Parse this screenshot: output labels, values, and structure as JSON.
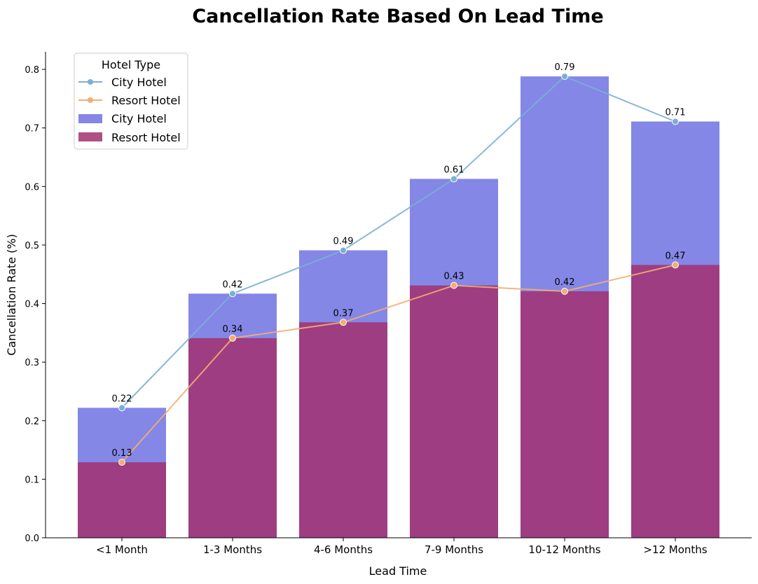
{
  "chart_data": {
    "type": "bar",
    "title": "Cancellation Rate Based On Lead Time",
    "xlabel": "Lead Time",
    "ylabel": "Cancellation Rate (%)",
    "categories": [
      "<1 Month",
      "1-3 Months",
      "4-6 Months",
      "7-9 Months",
      "10-12 Months",
      ">12 Months"
    ],
    "ylim": [
      0,
      0.83
    ],
    "yticks": [
      0.0,
      0.1,
      0.2,
      0.3,
      0.4,
      0.5,
      0.6,
      0.7,
      0.8
    ],
    "ytick_labels": [
      "0.0",
      "0.1",
      "0.2",
      "0.3",
      "0.4",
      "0.5",
      "0.6",
      "0.7",
      "0.8"
    ],
    "grid": false,
    "legend_title": "Hotel Type",
    "legend_placement": "top-left",
    "bar_series": [
      {
        "name": "City Hotel",
        "color": "#5b5fdd",
        "values": [
          0.222,
          0.417,
          0.491,
          0.613,
          0.788,
          0.711
        ]
      },
      {
        "name": "Resort Hotel",
        "color": "#a2306f",
        "values": [
          0.129,
          0.341,
          0.368,
          0.431,
          0.421,
          0.466
        ]
      }
    ],
    "line_series": [
      {
        "name": "City Hotel",
        "color": "#7bafd4",
        "values": [
          0.222,
          0.417,
          0.491,
          0.613,
          0.788,
          0.711
        ],
        "labels": [
          "0.22",
          "0.42",
          "0.49",
          "0.61",
          "0.79",
          "0.71"
        ]
      },
      {
        "name": "Resort Hotel",
        "color": "#f4ad70",
        "values": [
          0.129,
          0.341,
          0.368,
          0.431,
          0.421,
          0.466
        ],
        "labels": [
          "0.13",
          "0.34",
          "0.37",
          "0.43",
          "0.42",
          "0.47"
        ]
      }
    ]
  }
}
